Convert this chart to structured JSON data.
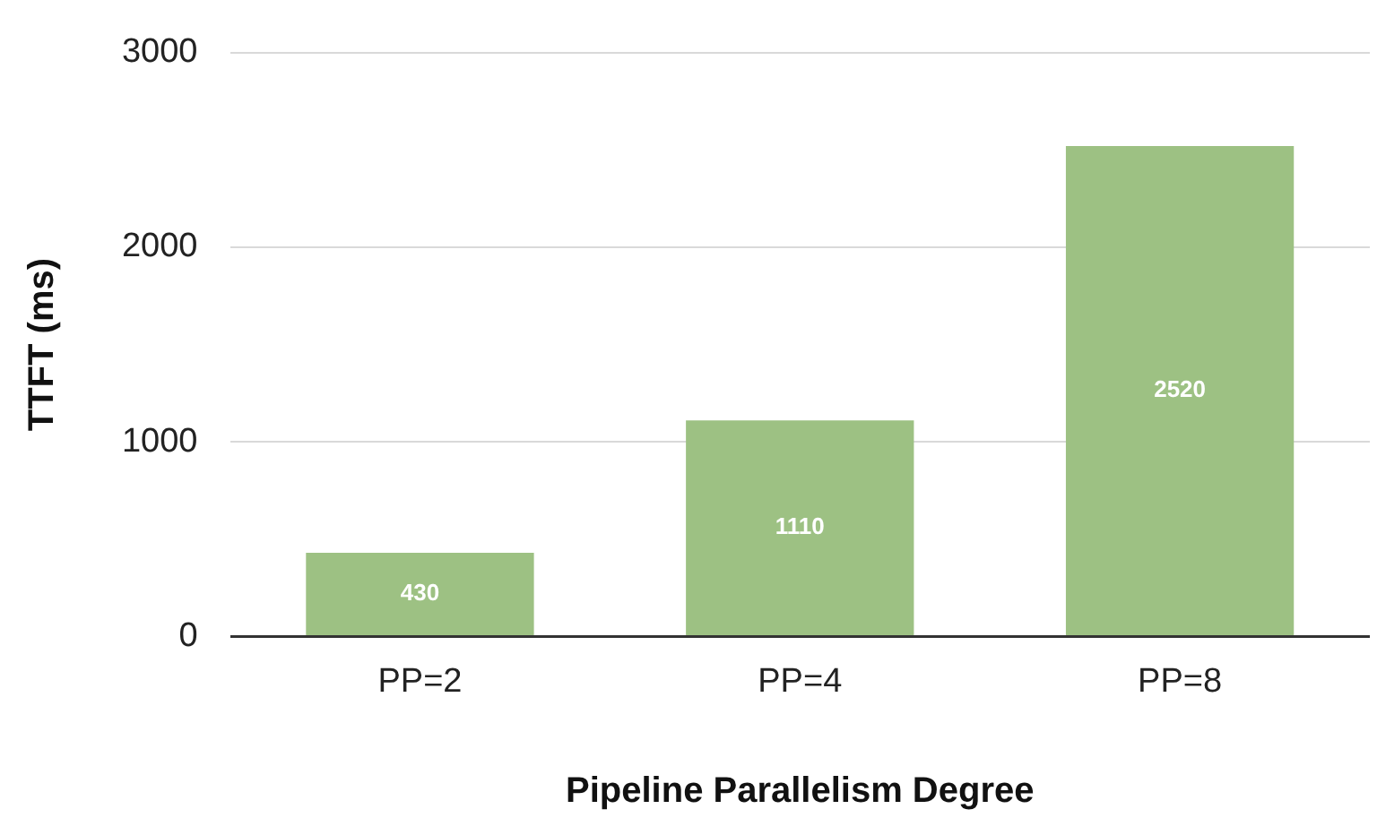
{
  "chart_data": {
    "type": "bar",
    "xlabel": "Pipeline Parallelism Degree",
    "ylabel": "TTFT (ms)",
    "categories": [
      "PP=2",
      "PP=4",
      "PP=8"
    ],
    "values": [
      430,
      1110,
      2520
    ],
    "color": "#9dc183",
    "ylim": [
      0,
      3000
    ],
    "yticks": [
      0,
      1000,
      2000,
      3000
    ],
    "grid": "y",
    "data_labels": true,
    "legend": false
  }
}
